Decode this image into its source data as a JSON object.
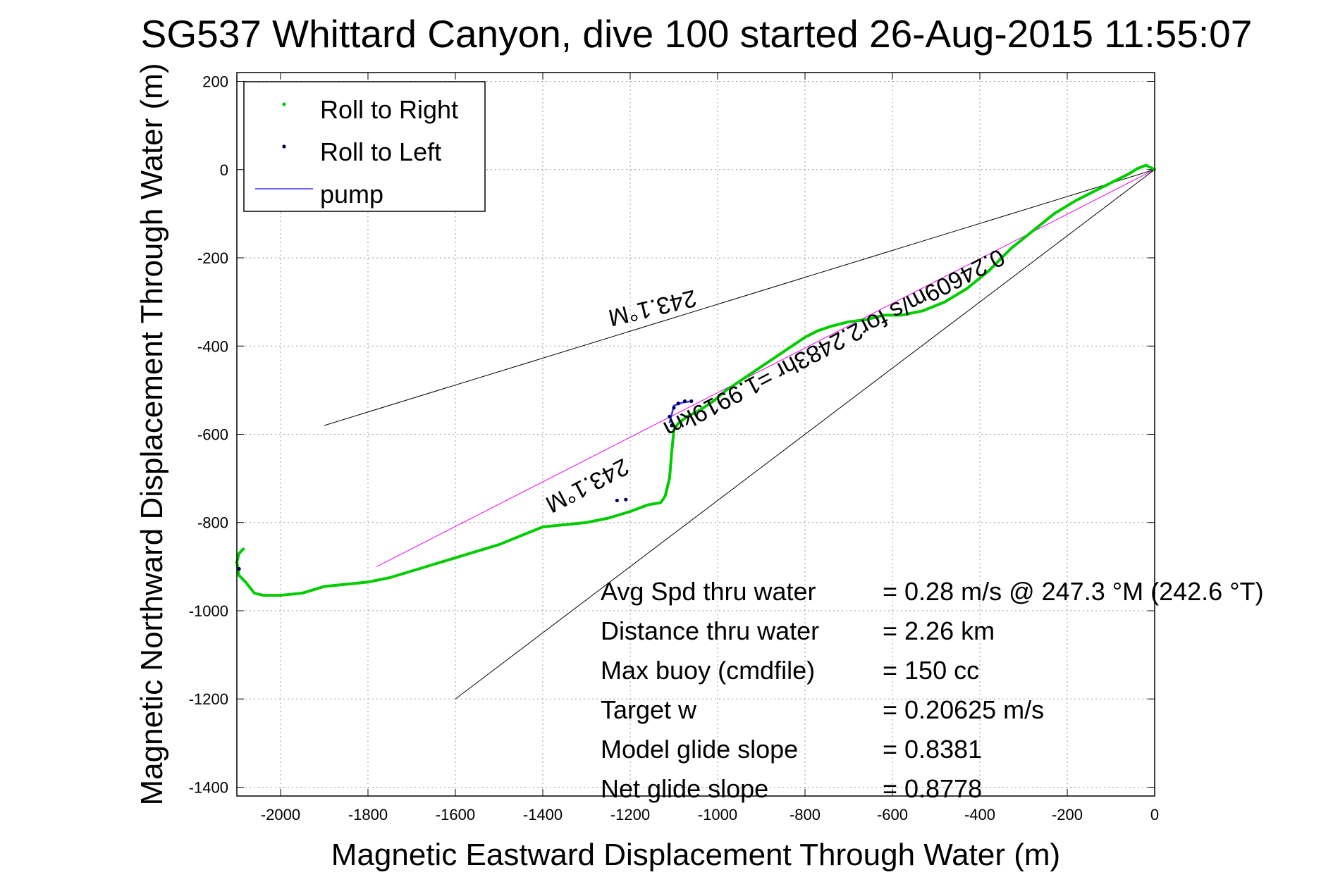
{
  "chart_data": {
    "type": "line",
    "title": "SG537 Whittard Canyon, dive 100 started 26-Aug-2015 11:55:07",
    "xlabel": "Magnetic Eastward Displacement Through Water (m)",
    "ylabel": "Magnetic Northward Displacement Through Water (m)",
    "xlim": [
      -2100,
      0
    ],
    "ylim": [
      -1420,
      220
    ],
    "x_ticks": [
      -2000,
      -1800,
      -1600,
      -1400,
      -1200,
      -1000,
      -800,
      -600,
      -400,
      -200,
      0
    ],
    "y_ticks": [
      200,
      0,
      -200,
      -400,
      -600,
      -800,
      -1000,
      -1200,
      -1400
    ],
    "grid": true,
    "legend_position": "top-left",
    "legend": [
      {
        "label": "Roll to Right",
        "color": "#00cc00",
        "marker": "point"
      },
      {
        "label": "Roll to Left",
        "color": "#000055",
        "marker": "point"
      },
      {
        "label": "pump",
        "color": "#3333ff",
        "marker": "line"
      }
    ],
    "series": [
      {
        "name": "Roll to Right",
        "color": "#00cc00",
        "x": [
          0,
          -10,
          -20,
          -40,
          -60,
          -80,
          -110,
          -140,
          -180,
          -230,
          -280,
          -330,
          -380,
          -430,
          -480,
          -530,
          -580,
          -620,
          -660,
          -700,
          -740,
          -770,
          -800,
          -830,
          -860,
          -890,
          -920,
          -950,
          -980,
          -1010,
          -1040,
          -1070,
          -1090,
          -1100,
          -1105,
          -1110,
          -1115,
          -1120,
          -1130,
          -1160,
          -1200,
          -1250,
          -1300,
          -1350,
          -1400,
          -1450,
          -1500,
          -1550,
          -1600,
          -1650,
          -1700,
          -1750,
          -1800,
          -1850,
          -1900,
          -1950,
          -2000,
          -2040,
          -2060,
          -2080,
          -2095,
          -2100,
          -2095,
          -2085
        ],
        "y": [
          0,
          5,
          10,
          2,
          -10,
          -20,
          -35,
          -50,
          -70,
          -100,
          -140,
          -180,
          -230,
          -270,
          -300,
          -320,
          -330,
          -330,
          -340,
          -345,
          -355,
          -365,
          -380,
          -400,
          -420,
          -440,
          -460,
          -480,
          -500,
          -525,
          -545,
          -560,
          -575,
          -590,
          -640,
          -700,
          -720,
          -740,
          -755,
          -760,
          -775,
          -790,
          -800,
          -805,
          -810,
          -830,
          -850,
          -865,
          -880,
          -895,
          -910,
          -925,
          -935,
          -940,
          -945,
          -960,
          -965,
          -965,
          -960,
          -935,
          -920,
          -890,
          -870,
          -860
        ]
      },
      {
        "name": "Roll to Left",
        "color": "#000055",
        "x": [
          -1060,
          -1075,
          -1090,
          -1100,
          -1110,
          -1105,
          -1210,
          -1230,
          -2095
        ],
        "y": [
          -525,
          -525,
          -530,
          -540,
          -560,
          -580,
          -748,
          -750,
          -905
        ]
      },
      {
        "name": "pump",
        "color": "#3333ff",
        "x": [
          -1060,
          -1080,
          -1100,
          -1110
        ],
        "y": [
          -525,
          -528,
          -535,
          -575
        ]
      }
    ],
    "reference_lines": [
      {
        "name": "heading",
        "color": "#ee00ee",
        "x": [
          0,
          -1780
        ],
        "y": [
          0,
          -900
        ]
      },
      {
        "name": "bound-upper",
        "color": "#000000",
        "x": [
          0,
          -1900
        ],
        "y": [
          0,
          -580
        ]
      },
      {
        "name": "bound-lower",
        "color": "#000000",
        "x": [
          0,
          -1600
        ],
        "y": [
          0,
          -1200
        ]
      }
    ],
    "annotations": [
      {
        "name": "heading-label-mid",
        "text": "243.1°M",
        "x": -1300,
        "y": -713,
        "angle": 152.5
      },
      {
        "name": "heading-label-upper",
        "text": "243.1°M",
        "x": -1150,
        "y": -310,
        "angle": 166.5
      },
      {
        "name": "glide-summary-label",
        "text": "0.24609m/s for2.2483hr =1.9919km",
        "x": -735,
        "y": -390,
        "angle": 152.5
      }
    ],
    "stats": [
      {
        "label": "Avg Spd thru water",
        "value": "=  0.28 m/s @ 247.3 °M (242.6 °T)"
      },
      {
        "label": "Distance thru water",
        "value": "=  2.26 km"
      },
      {
        "label": "Max buoy (cmdfile)",
        "value": "= 150 cc"
      },
      {
        "label": "Target w",
        "value": "= 0.20625 m/s"
      },
      {
        "label": "Model glide slope",
        "value": "= 0.8381"
      },
      {
        "label": "Net glide slope",
        "value": "= 0.8778"
      }
    ]
  }
}
